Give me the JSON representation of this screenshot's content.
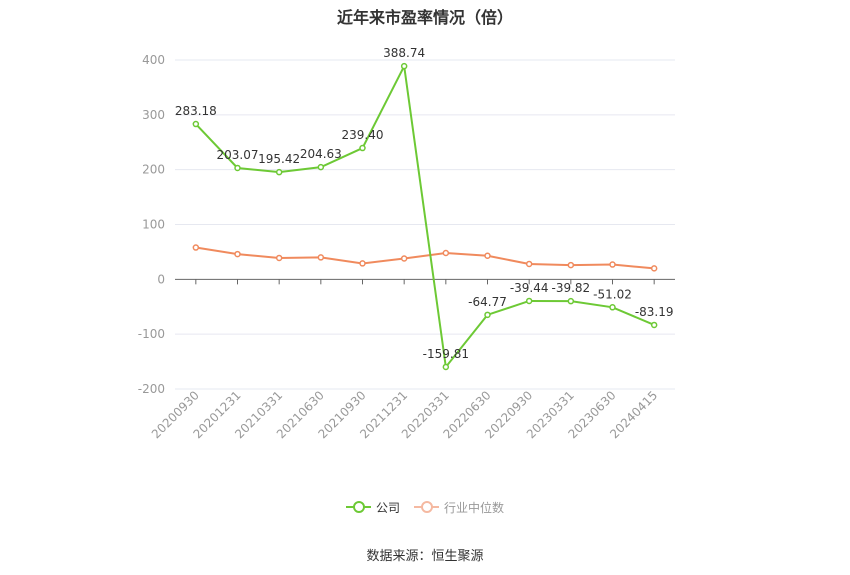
{
  "title": "近年来市盈率情况（倍）",
  "source": "数据来源：恒生聚源",
  "colors": {
    "company": "#6dc935",
    "industry": "#f08a5d"
  },
  "legend": {
    "company": "公司",
    "industry": "行业中位数"
  },
  "chart_data": {
    "type": "line",
    "categories": [
      "20200930",
      "20201231",
      "20210331",
      "20210630",
      "20210930",
      "20211231",
      "20220331",
      "20220630",
      "20220930",
      "20230331",
      "20230630",
      "20240415"
    ],
    "series": [
      {
        "name": "公司",
        "values": [
          283.18,
          203.07,
          195.42,
          204.63,
          239.4,
          388.74,
          -159.81,
          -64.77,
          -39.44,
          -39.82,
          -51.02,
          -83.19
        ],
        "labels": [
          "283.18",
          "203.07",
          "195.42",
          "204.63",
          "239.40",
          "388.74",
          "-159.81",
          "-64.77",
          "-39.44",
          "-39.82",
          "-51.02",
          "-83.19"
        ]
      },
      {
        "name": "行业中位数",
        "values": [
          58,
          46,
          39,
          40,
          29,
          38,
          48,
          43,
          28,
          26,
          27,
          20
        ]
      }
    ],
    "yticks": [
      "400",
      "300",
      "200",
      "100",
      "0",
      "-100",
      "-200"
    ],
    "ylim": [
      -200,
      400
    ],
    "grid": true,
    "legend_position": "bottom"
  }
}
